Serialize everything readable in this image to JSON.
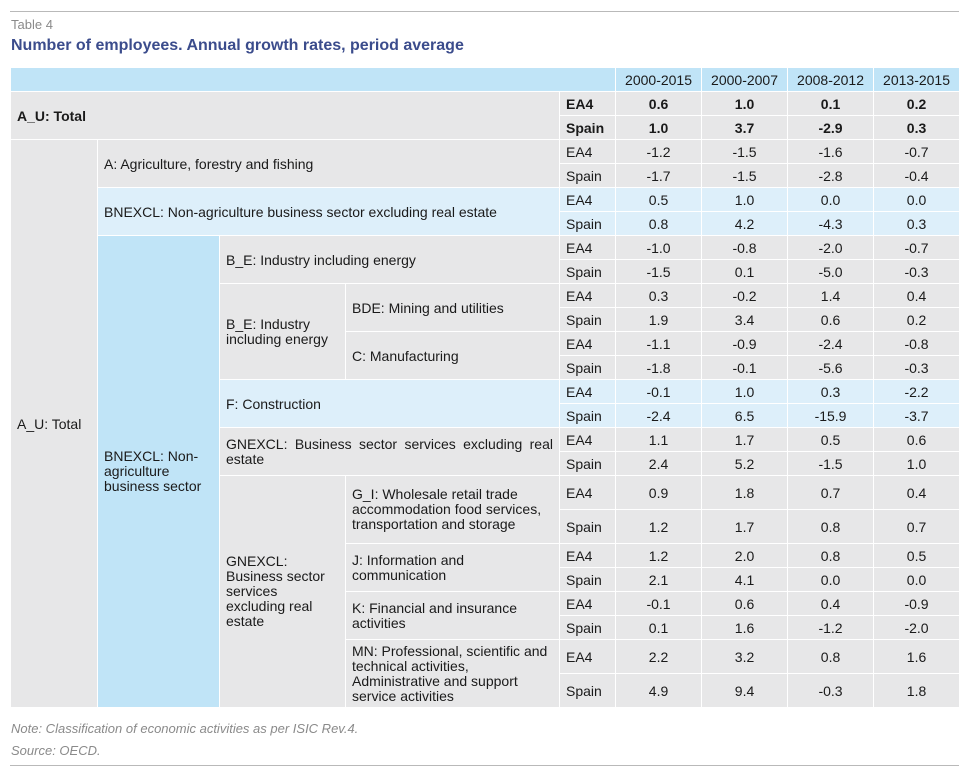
{
  "table_number": "Table 4",
  "title": "Number of employees. Annual growth rates, period average",
  "periods": [
    "2000-2015",
    "2000-2007",
    "2008-2012",
    "2013-2015"
  ],
  "total": {
    "label": "A_U: Total",
    "ea4": {
      "region": "EA4",
      "values": [
        "0.6",
        "1.0",
        "0.1",
        "0.2"
      ]
    },
    "spain": {
      "region": "Spain",
      "values": [
        "1.0",
        "3.7",
        "-2.9",
        "0.3"
      ]
    }
  },
  "left_label": "A_U: Total",
  "agri": {
    "label": "A: Agriculture, forestry and fishing",
    "ea4": [
      "-1.2",
      "-1.5",
      "-1.6",
      "-0.7"
    ],
    "spain": [
      "-1.7",
      "-1.5",
      "-2.8",
      "-0.4"
    ]
  },
  "bnexcl": {
    "label": "BNEXCL: Non-agriculture business sector excluding real estate",
    "ea4": [
      "0.5",
      "1.0",
      "0.0",
      "0.0"
    ],
    "spain": [
      "0.8",
      "4.2",
      "-4.3",
      "0.3"
    ]
  },
  "bnexcl_group": "BNEXCL: Non-agriculture business sector",
  "be": {
    "label": "B_E: Industry including energy",
    "ea4": [
      "-1.0",
      "-0.8",
      "-2.0",
      "-0.7"
    ],
    "spain": [
      "-1.5",
      "0.1",
      "-5.0",
      "-0.3"
    ]
  },
  "be_group": "B_E: Industry including energy",
  "bde": {
    "label": "BDE: Mining and utilities",
    "ea4": [
      "0.3",
      "-0.2",
      "1.4",
      "0.4"
    ],
    "spain": [
      "1.9",
      "3.4",
      "0.6",
      "0.2"
    ]
  },
  "manuf": {
    "label": "C: Manufacturing",
    "ea4": [
      "-1.1",
      "-0.9",
      "-2.4",
      "-0.8"
    ],
    "spain": [
      "-1.8",
      "-0.1",
      "-5.6",
      "-0.3"
    ]
  },
  "constr": {
    "label": "F: Construction",
    "ea4": [
      "-0.1",
      "1.0",
      "0.3",
      "-2.2"
    ],
    "spain": [
      "-2.4",
      "6.5",
      "-15.9",
      "-3.7"
    ]
  },
  "gnexcl": {
    "label": "GNEXCL: Business sector services excluding real estate",
    "ea4": [
      "1.1",
      "1.7",
      "0.5",
      "0.6"
    ],
    "spain": [
      "2.4",
      "5.2",
      "-1.5",
      "1.0"
    ]
  },
  "gnexcl_group": "GNEXCL: Business sector services excluding real estate",
  "gi": {
    "label": "G_I: Wholesale retail trade accommodation food services, transportation and storage",
    "ea4": [
      "0.9",
      "1.8",
      "0.7",
      "0.4"
    ],
    "spain": [
      "1.2",
      "1.7",
      "0.8",
      "0.7"
    ]
  },
  "j": {
    "label": "J: Information and communication",
    "ea4": [
      "1.2",
      "2.0",
      "0.8",
      "0.5"
    ],
    "spain": [
      "2.1",
      "4.1",
      "0.0",
      "0.0"
    ]
  },
  "k": {
    "label": "K: Financial and insurance activities",
    "ea4": [
      "-0.1",
      "0.6",
      "0.4",
      "-0.9"
    ],
    "spain": [
      "0.1",
      "1.6",
      "-1.2",
      "-2.0"
    ]
  },
  "mn": {
    "label": "MN: Professional, scientific and technical activities, Administrative and support service activities",
    "ea4": [
      "2.2",
      "3.2",
      "0.8",
      "1.6"
    ],
    "spain": [
      "4.9",
      "9.4",
      "-0.3",
      "1.8"
    ]
  },
  "regions": {
    "ea4": "EA4",
    "spain": "Spain"
  },
  "note": "Note: Classification of economic activities as per ISIC Rev.4.",
  "source": "Source: OECD."
}
